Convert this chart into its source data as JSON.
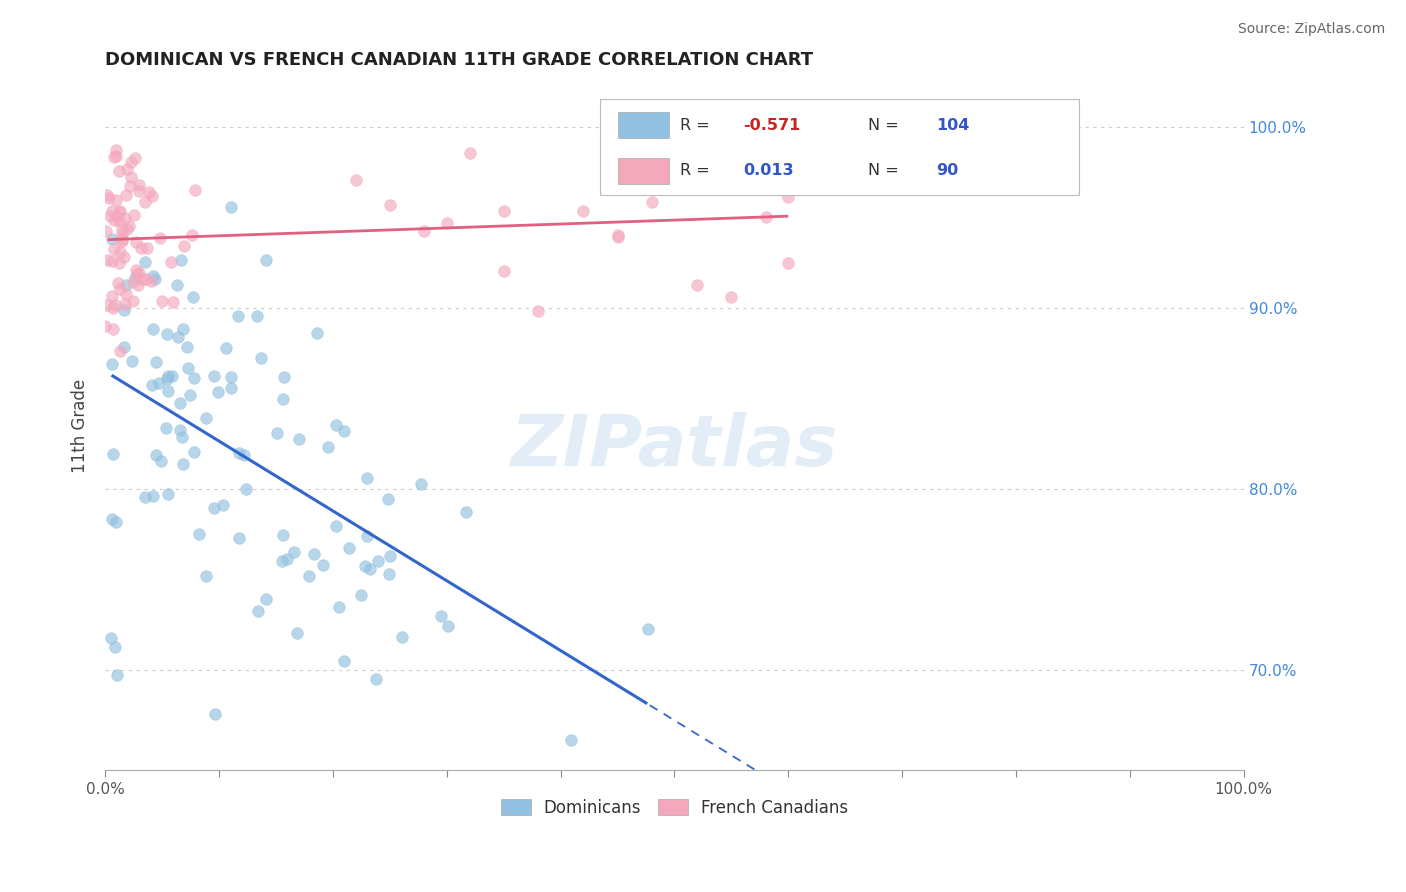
{
  "title": "DOMINICAN VS FRENCH CANADIAN 11TH GRADE CORRELATION CHART",
  "source": "Source: ZipAtlas.com",
  "ylabel": "11th Grade",
  "y_ticks": [
    0.7,
    0.8,
    0.9,
    1.0
  ],
  "y_tick_labels": [
    "70.0%",
    "80.0%",
    "90.0%",
    "100.0%"
  ],
  "blue_R": -0.571,
  "blue_N": 104,
  "pink_R": 0.013,
  "pink_N": 90,
  "blue_color": "#92c0e0",
  "pink_color": "#f4a8bc",
  "blue_line_color": "#3366cc",
  "pink_line_color": "#e06080",
  "background_color": "#ffffff",
  "watermark": "ZIPatlas",
  "legend_label_blue": "Dominicans",
  "legend_label_pink": "French Canadians",
  "xlim": [
    0.0,
    1.0
  ],
  "ylim": [
    0.645,
    1.025
  ]
}
